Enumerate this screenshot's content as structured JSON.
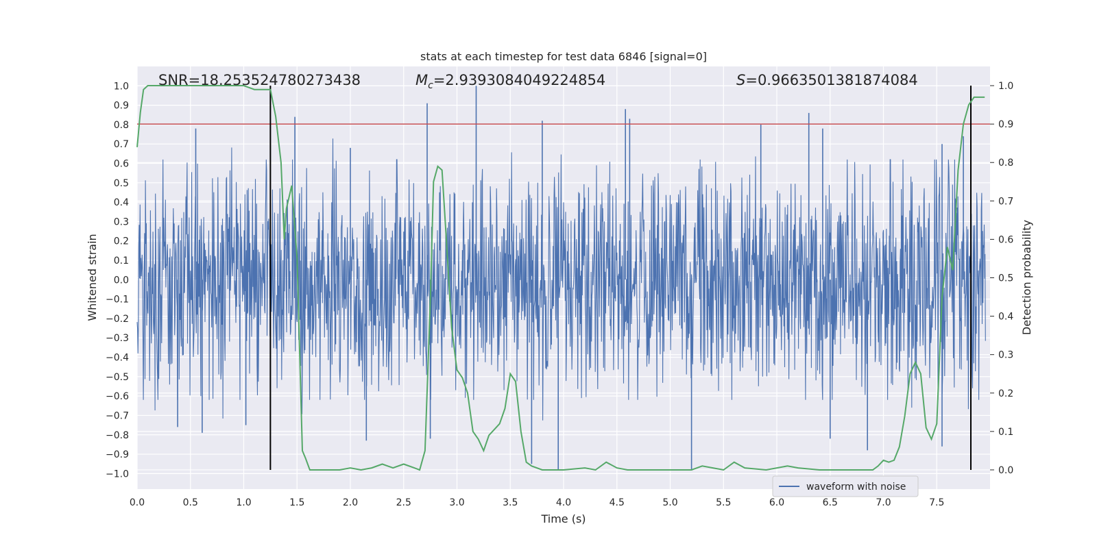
{
  "chart_data": {
    "type": "line",
    "title": "stats at each timestep for test data 6846 [signal=0]",
    "xlabel": "Time (s)",
    "ylabel_left": "Whitened strain",
    "ylabel_right": "Detection probability",
    "xlim": [
      0.0,
      8.0
    ],
    "ylim_left": [
      -1.08,
      1.1
    ],
    "ylim_right": [
      -0.05,
      1.05
    ],
    "x_ticks": [
      "0.0",
      "0.5",
      "1.0",
      "1.5",
      "2.0",
      "2.5",
      "3.0",
      "3.5",
      "4.0",
      "4.5",
      "5.0",
      "5.5",
      "6.0",
      "6.5",
      "7.0",
      "7.5"
    ],
    "x_tick_values": [
      0,
      0.5,
      1,
      1.5,
      2,
      2.5,
      3,
      3.5,
      4,
      4.5,
      5,
      5.5,
      6,
      6.5,
      7,
      7.5
    ],
    "y_left_ticks": [
      "1.0",
      "0.9",
      "0.8",
      "0.7",
      "0.6",
      "0.5",
      "0.4",
      "0.3",
      "0.2",
      "0.1",
      "0.0",
      "−0.1",
      "−0.2",
      "−0.3",
      "−0.4",
      "−0.5",
      "−0.6",
      "−0.7",
      "−0.8",
      "−0.9",
      "−1.0"
    ],
    "y_left_tick_values": [
      1.0,
      0.9,
      0.8,
      0.7,
      0.6,
      0.5,
      0.4,
      0.3,
      0.2,
      0.1,
      0.0,
      -0.1,
      -0.2,
      -0.3,
      -0.4,
      -0.5,
      -0.6,
      -0.7,
      -0.8,
      -0.9,
      -1.0
    ],
    "y_right_ticks": [
      "1.0",
      "0.9",
      "0.8",
      "0.7",
      "0.6",
      "0.5",
      "0.4",
      "0.3",
      "0.2",
      "0.1",
      "0.0"
    ],
    "y_right_tick_values": [
      1.0,
      0.9,
      0.8,
      0.7,
      0.6,
      0.5,
      0.4,
      0.3,
      0.2,
      0.1,
      0.0
    ],
    "threshold": {
      "value_right_axis": 0.9,
      "color": "#c44e52"
    },
    "vertical_markers": [
      1.25,
      7.82
    ],
    "annotations": {
      "snr": "SNR=18.253524780273438",
      "mc_symbol": "M",
      "mc_sub": "c",
      "mc_value": "=2.9393084049224854",
      "s_symbol": "S",
      "s_value": "=0.9663501381874084"
    },
    "legend": [
      "waveform with noise"
    ],
    "series": [
      {
        "name": "waveform with noise",
        "axis": "left",
        "color": "#4c72b0",
        "sample_rate": 256,
        "seed": 6846,
        "envelope": 0.38,
        "spike_peaks_pos": [
          [
            0.55,
            0.78
          ],
          [
            1.48,
            0.84
          ],
          [
            2.0,
            0.68
          ],
          [
            2.72,
            0.91
          ],
          [
            3.18,
            1.0
          ],
          [
            3.8,
            0.82
          ],
          [
            4.58,
            0.88
          ],
          [
            4.62,
            0.83
          ],
          [
            5.85,
            0.8
          ],
          [
            6.3,
            0.86
          ],
          [
            6.43,
            0.78
          ],
          [
            7.55,
            0.7
          ],
          [
            7.75,
            0.74
          ]
        ],
        "spike_peaks_neg": [
          [
            0.38,
            -0.76
          ],
          [
            0.61,
            -0.79
          ],
          [
            1.02,
            -0.75
          ],
          [
            2.15,
            -0.83
          ],
          [
            2.75,
            -0.82
          ],
          [
            3.7,
            -0.95
          ],
          [
            3.95,
            -0.98
          ],
          [
            5.2,
            -0.98
          ],
          [
            6.5,
            -0.82
          ],
          [
            6.85,
            -0.88
          ],
          [
            7.55,
            -0.86
          ],
          [
            7.82,
            -0.77
          ]
        ]
      },
      {
        "name": "detection probability",
        "axis": "right",
        "color": "#55a868",
        "x": [
          0.0,
          0.03,
          0.06,
          0.1,
          0.2,
          0.4,
          0.6,
          0.8,
          1.0,
          1.1,
          1.2,
          1.25,
          1.3,
          1.35,
          1.38,
          1.4,
          1.45,
          1.5,
          1.55,
          1.58,
          1.62,
          1.7,
          1.8,
          1.9,
          2.0,
          2.1,
          2.2,
          2.3,
          2.35,
          2.4,
          2.5,
          2.6,
          2.65,
          2.7,
          2.75,
          2.78,
          2.82,
          2.86,
          2.9,
          2.95,
          3.0,
          3.05,
          3.1,
          3.15,
          3.2,
          3.25,
          3.3,
          3.4,
          3.45,
          3.5,
          3.55,
          3.6,
          3.65,
          3.7,
          3.8,
          4.0,
          4.2,
          4.3,
          4.4,
          4.5,
          4.6,
          4.8,
          5.0,
          5.2,
          5.3,
          5.4,
          5.5,
          5.6,
          5.7,
          5.9,
          6.1,
          6.2,
          6.4,
          6.6,
          6.8,
          6.9,
          6.95,
          7.0,
          7.05,
          7.1,
          7.15,
          7.2,
          7.25,
          7.3,
          7.35,
          7.4,
          7.45,
          7.5,
          7.55,
          7.6,
          7.65,
          7.7,
          7.75,
          7.8,
          7.85,
          7.9,
          7.95
        ],
        "y": [
          0.84,
          0.93,
          0.99,
          1.0,
          1.0,
          1.0,
          1.0,
          1.0,
          1.0,
          0.99,
          0.99,
          0.99,
          0.92,
          0.8,
          0.6,
          0.68,
          0.74,
          0.55,
          0.05,
          0.03,
          0.0,
          0.0,
          0.0,
          0.0,
          0.005,
          0.0,
          0.005,
          0.015,
          0.01,
          0.005,
          0.015,
          0.005,
          0.0,
          0.05,
          0.44,
          0.75,
          0.79,
          0.78,
          0.6,
          0.37,
          0.26,
          0.24,
          0.2,
          0.1,
          0.08,
          0.05,
          0.09,
          0.12,
          0.16,
          0.25,
          0.23,
          0.1,
          0.02,
          0.01,
          0.0,
          0.0,
          0.005,
          0.0,
          0.02,
          0.005,
          0.0,
          0.0,
          0.0,
          0.0,
          0.01,
          0.005,
          0.0,
          0.02,
          0.005,
          0.0,
          0.01,
          0.005,
          0.0,
          0.0,
          0.0,
          0.0,
          0.01,
          0.025,
          0.02,
          0.025,
          0.06,
          0.14,
          0.25,
          0.28,
          0.25,
          0.11,
          0.08,
          0.12,
          0.45,
          0.58,
          0.52,
          0.78,
          0.9,
          0.95,
          0.97,
          0.97,
          0.97
        ]
      }
    ]
  }
}
